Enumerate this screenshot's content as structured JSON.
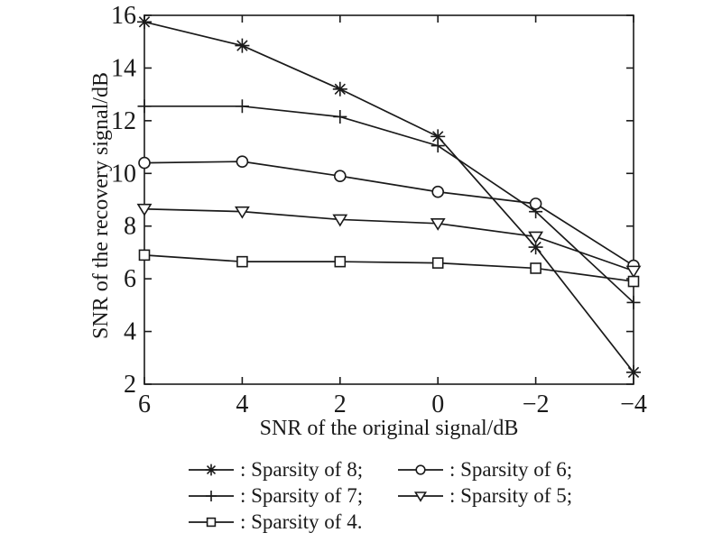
{
  "figure": {
    "background": "#ffffff",
    "line_color": "#1a1a1a"
  },
  "chart_data": {
    "type": "line",
    "title": "",
    "xlabel": "SNR of the original signal/dB",
    "ylabel": "SNR of the recovery signal/dB",
    "xlim": [
      6,
      -4
    ],
    "ylim": [
      2,
      16
    ],
    "x_axis_reversed": true,
    "grid": false,
    "legend_position": "below",
    "xticks": [
      6,
      4,
      2,
      0,
      -2,
      -4
    ],
    "xtick_labels": [
      "6",
      "4",
      "2",
      "0",
      "−2",
      "−4"
    ],
    "yticks": [
      2,
      4,
      6,
      8,
      10,
      12,
      14,
      16
    ],
    "ytick_labels": [
      "2",
      "4",
      "6",
      "8",
      "10",
      "12",
      "14",
      "16"
    ],
    "x": [
      6,
      4,
      2,
      0,
      -2,
      -4
    ],
    "series": [
      {
        "name": "Sparsity of 8",
        "marker": "asterisk",
        "values": [
          15.75,
          14.85,
          13.2,
          11.4,
          7.2,
          2.45
        ]
      },
      {
        "name": "Sparsity of 7",
        "marker": "plus",
        "values": [
          12.55,
          12.55,
          12.15,
          11.05,
          8.55,
          5.1
        ]
      },
      {
        "name": "Sparsity of 6",
        "marker": "circle",
        "values": [
          10.4,
          10.45,
          9.9,
          9.3,
          8.85,
          6.5
        ]
      },
      {
        "name": "Sparsity of 5",
        "marker": "triangle-down",
        "values": [
          8.65,
          8.55,
          8.25,
          8.1,
          7.6,
          6.3
        ]
      },
      {
        "name": "Sparsity of 4",
        "marker": "square",
        "values": [
          6.9,
          6.65,
          6.65,
          6.6,
          6.4,
          5.9
        ]
      }
    ]
  },
  "legend": {
    "rows": [
      [
        {
          "marker": "asterisk",
          "label": ": Sparsity of 8;"
        },
        {
          "marker": "circle",
          "label": ": Sparsity of 6;"
        }
      ],
      [
        {
          "marker": "plus",
          "label": ": Sparsity of 7;"
        },
        {
          "marker": "triangle-down",
          "label": ": Sparsity of 5;"
        }
      ],
      [
        {
          "marker": "square",
          "label": ": Sparsity of 4."
        }
      ]
    ]
  }
}
